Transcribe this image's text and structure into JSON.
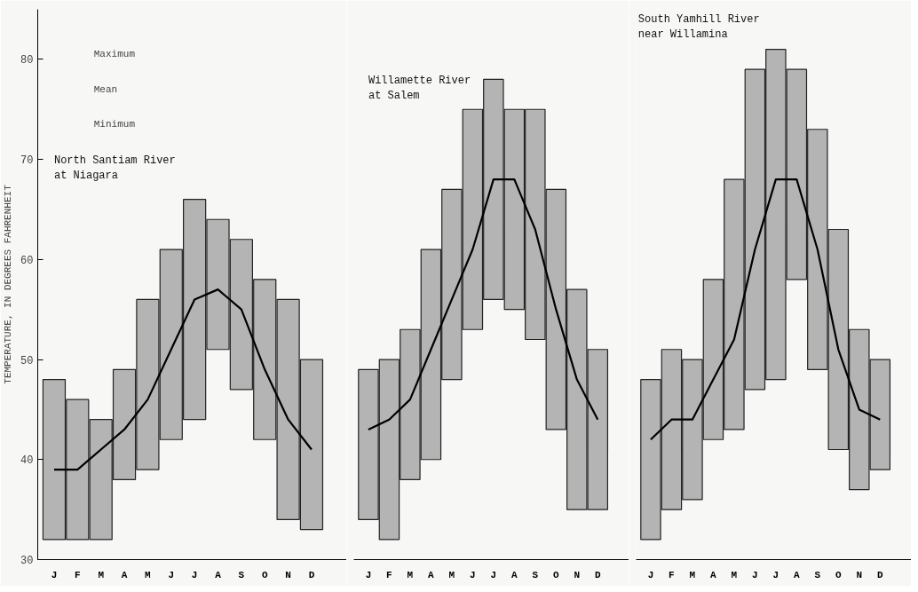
{
  "chart_data": [
    {
      "type": "bar",
      "title": "North Santiam River\nat Niagara",
      "ylabel": "TEMPERATURE, IN DEGREES FAHRENHEIT",
      "categories": [
        "J",
        "F",
        "M",
        "A",
        "M",
        "J",
        "J",
        "A",
        "S",
        "O",
        "N",
        "D"
      ],
      "ylim": [
        30,
        85
      ],
      "yticks": [
        30,
        40,
        50,
        60,
        70,
        80
      ],
      "tick_labels": true,
      "grid": false,
      "annotations": [
        "Maximum",
        "Mean",
        "Minimum"
      ],
      "series": [
        {
          "color": "#b4b4b4",
          "base": [
            32,
            32,
            32,
            38,
            39,
            42,
            44,
            51,
            47,
            42,
            34,
            33
          ],
          "values": [
            16,
            14,
            12,
            11,
            17,
            19,
            22,
            13,
            15,
            16,
            22,
            17
          ]
        },
        {
          "type": "line",
          "color": "#000000",
          "line_style": "solid",
          "values": [
            39,
            39,
            41,
            43,
            46,
            51,
            56,
            57,
            55,
            49,
            44,
            41
          ]
        }
      ]
    },
    {
      "type": "bar",
      "title": "Willamette River\nat Salem",
      "categories": [
        "J",
        "F",
        "M",
        "A",
        "M",
        "J",
        "J",
        "A",
        "S",
        "O",
        "N",
        "D"
      ],
      "ylim": [
        30,
        85
      ],
      "tick_labels": "x",
      "grid": false,
      "series": [
        {
          "color": "#b4b4b4",
          "base": [
            34,
            32,
            38,
            40,
            48,
            53,
            56,
            55,
            52,
            43,
            35,
            35
          ],
          "values": [
            15,
            18,
            15,
            21,
            19,
            22,
            22,
            20,
            23,
            24,
            22,
            16
          ]
        },
        {
          "type": "line",
          "color": "#000000",
          "line_style": "solid",
          "values": [
            43,
            44,
            46,
            51,
            56,
            61,
            68,
            68,
            63,
            55,
            48,
            44
          ]
        }
      ]
    },
    {
      "type": "bar",
      "title": "South Yamhill River\n  near Willamina",
      "categories": [
        "J",
        "F",
        "M",
        "A",
        "M",
        "J",
        "J",
        "A",
        "S",
        "O",
        "N",
        "D"
      ],
      "ylim": [
        30,
        85
      ],
      "tick_labels": "x",
      "grid": false,
      "series": [
        {
          "color": "#b4b4b4",
          "base": [
            32,
            35,
            36,
            42,
            43,
            47,
            48,
            58,
            49,
            41,
            37,
            39
          ],
          "values": [
            16,
            16,
            14,
            16,
            25,
            32,
            33,
            21,
            24,
            22,
            16,
            11
          ]
        },
        {
          "type": "line",
          "color": "#000000",
          "line_style": "solid",
          "values": [
            42,
            44,
            44,
            48,
            52,
            61,
            68,
            68,
            61,
            51,
            45,
            44
          ]
        }
      ]
    }
  ]
}
